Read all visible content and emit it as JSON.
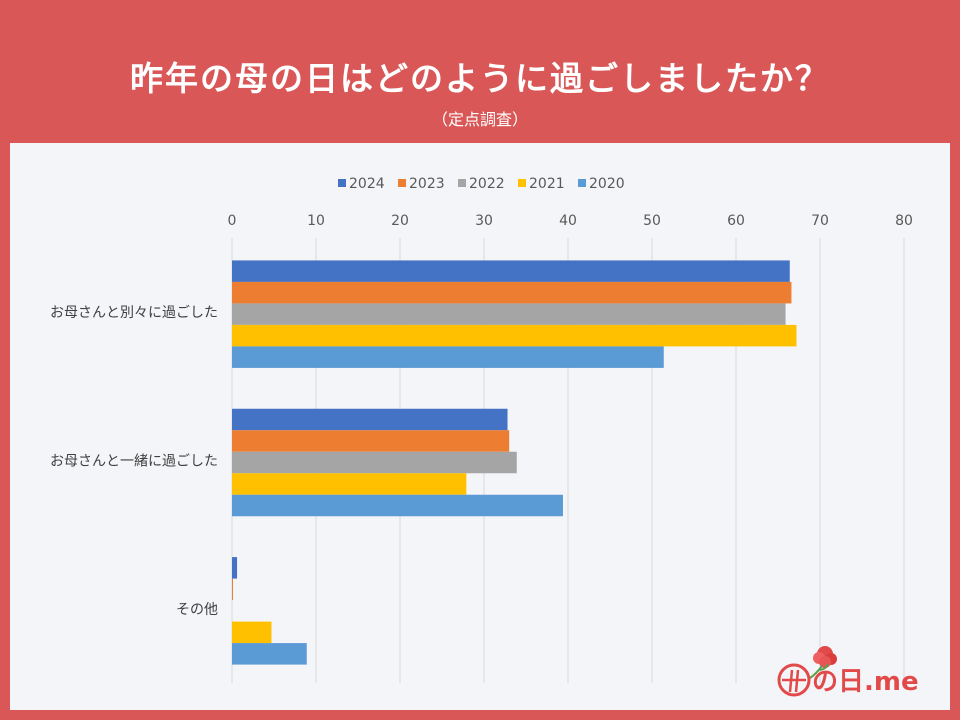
{
  "header": {
    "title": "昨年の母の日はどのように過ごしましたか？",
    "subtitle": "（定点調査）"
  },
  "logo": {
    "text": "母の日.me",
    "icon": "carnation-flower-icon"
  },
  "colors": {
    "background": "#d95757",
    "panel": "#f4f5f8",
    "series": [
      "#4472c4",
      "#ed7d31",
      "#a5a5a5",
      "#ffc000",
      "#5b9bd5"
    ]
  },
  "chart_data": {
    "type": "bar",
    "orientation": "horizontal",
    "categories": [
      "お母さんと別々に過ごした",
      "お母さんと一緒に過ごした",
      "その他"
    ],
    "series": [
      {
        "name": "2024",
        "values": [
          66.4,
          32.8,
          0.6
        ]
      },
      {
        "name": "2023",
        "values": [
          66.6,
          33.0,
          0.1
        ]
      },
      {
        "name": "2022",
        "values": [
          65.9,
          33.9,
          0
        ]
      },
      {
        "name": "2021",
        "values": [
          67.2,
          27.9,
          4.7
        ]
      },
      {
        "name": "2020",
        "values": [
          51.4,
          39.4,
          8.9
        ]
      }
    ],
    "xlim": [
      0,
      80
    ],
    "xticks": [
      0,
      10,
      20,
      30,
      40,
      50,
      60,
      70,
      80
    ],
    "grid": true,
    "legend_position": "top",
    "axis_position": "top"
  }
}
